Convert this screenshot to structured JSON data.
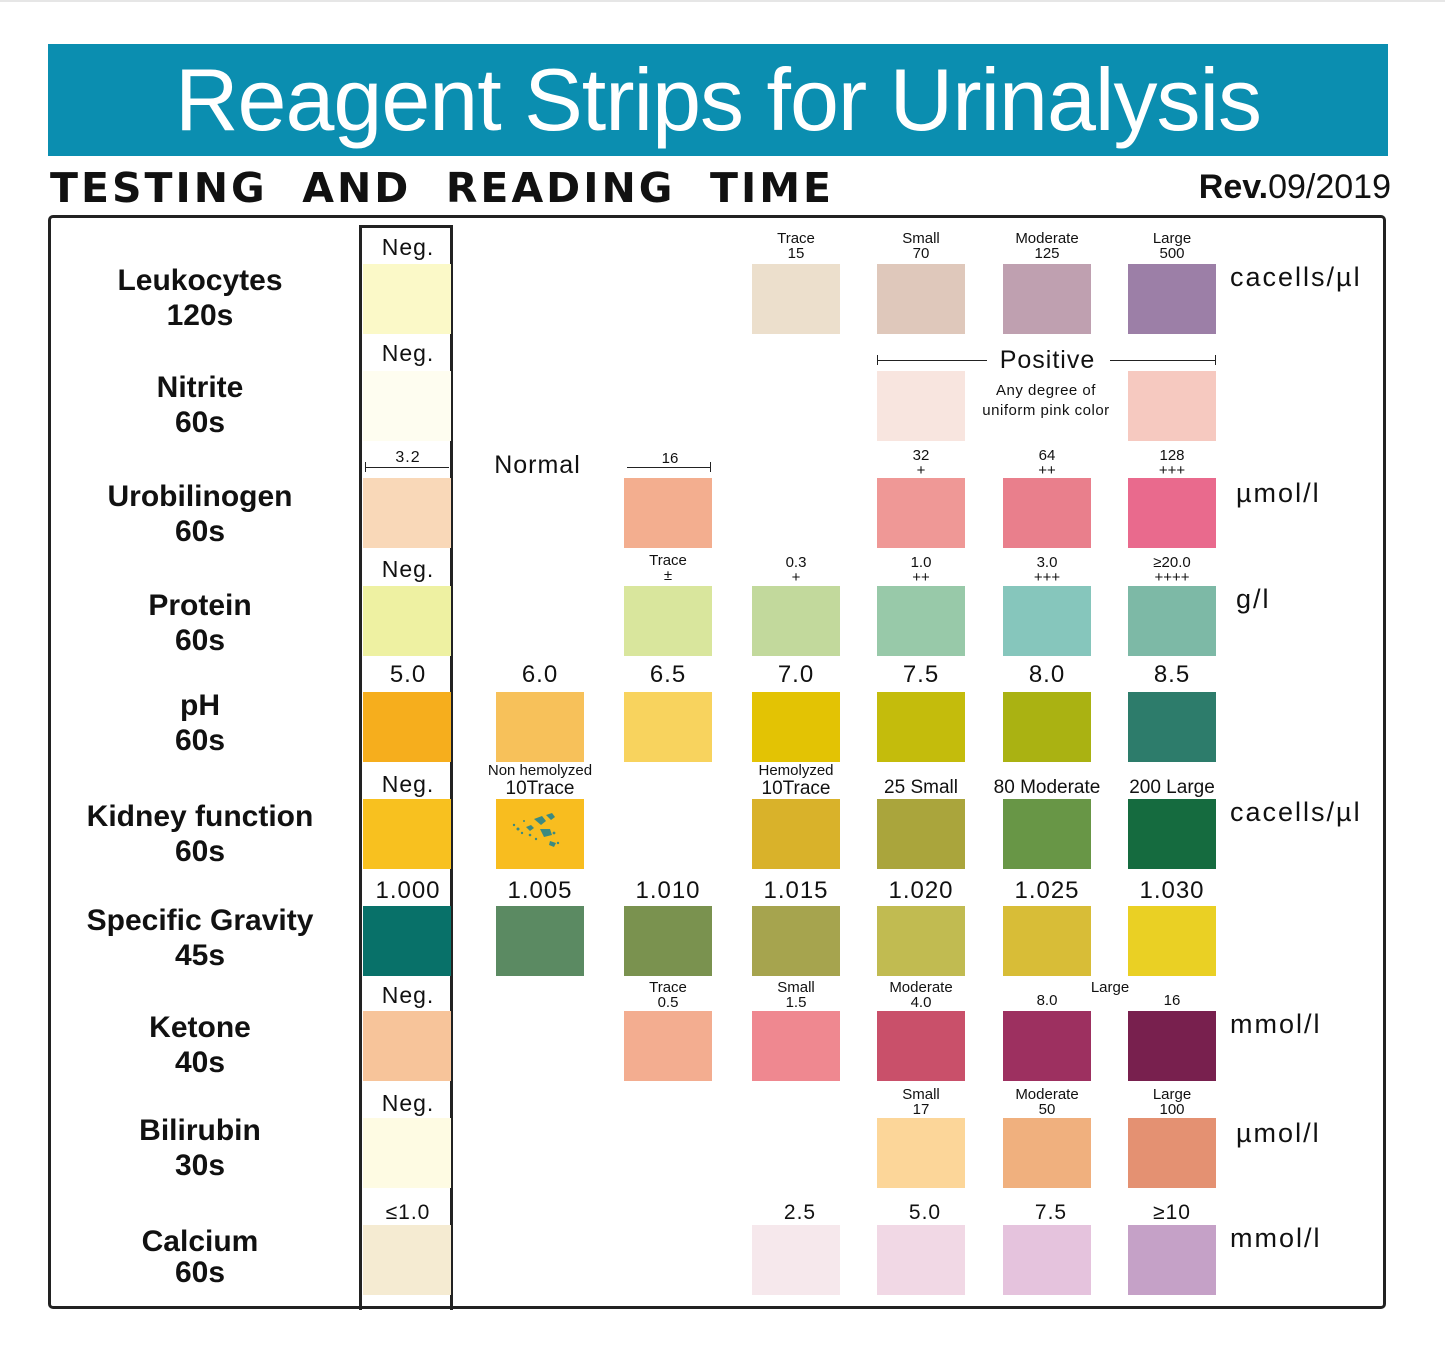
{
  "title": "Reagent Strips for Urinalysis",
  "subtitle": "TESTING  AND  READING  TIME",
  "rev": {
    "label": "Rev.",
    "date": "09/2019"
  },
  "rows": {
    "leukocytes": {
      "name": "Leukocytes",
      "time": "120s",
      "unit": "cacells/µl",
      "neg": "Neg.",
      "levels": [
        {
          "top": "Trace",
          "bottom": "15"
        },
        {
          "top": "Small",
          "bottom": "70"
        },
        {
          "top": "Moderate",
          "bottom": "125"
        },
        {
          "top": "Large",
          "bottom": "500"
        }
      ]
    },
    "nitrite": {
      "name": "Nitrite",
      "time": "60s",
      "neg": "Neg.",
      "positive": "Positive",
      "note_line1": "Any degree of",
      "note_line2": "uniform pink color"
    },
    "urobilinogen": {
      "name": "Urobilinogen",
      "time": "60s",
      "unit": "µmol/l",
      "first": "3.2",
      "normal": "Normal",
      "level16": "16",
      "levels": [
        {
          "top": "32",
          "bottom": "+"
        },
        {
          "top": "64",
          "bottom": "++"
        },
        {
          "top": "128",
          "bottom": "+++"
        }
      ]
    },
    "protein": {
      "name": "Protein",
      "time": "60s",
      "unit": "g/l",
      "neg": "Neg.",
      "levels": [
        {
          "top": "Trace",
          "bottom": "±"
        },
        {
          "top": "0.3",
          "bottom": "+"
        },
        {
          "top": "1.0",
          "bottom": "++"
        },
        {
          "top": "3.0",
          "bottom": "+++"
        },
        {
          "top": "≥20.0",
          "bottom": "++++"
        }
      ]
    },
    "ph": {
      "name": "pH",
      "time": "60s",
      "values": [
        "5.0",
        "6.0",
        "6.5",
        "7.0",
        "7.5",
        "8.0",
        "8.5"
      ]
    },
    "kidney": {
      "name": "Kidney function",
      "time": "60s",
      "unit": "cacells/µl",
      "neg": "Neg.",
      "nonhemo_top": "Non hemolyzed",
      "nonhemo_bottom": "10Trace",
      "hemo_top": "Hemolyzed",
      "hemo_bottom": "10Trace",
      "small": "25 Small",
      "moderate": "80 Moderate",
      "large": "200 Large"
    },
    "sg": {
      "name": "Specific Gravity",
      "time": "45s",
      "values": [
        "1.000",
        "1.005",
        "1.010",
        "1.015",
        "1.020",
        "1.025",
        "1.030"
      ]
    },
    "ketone": {
      "name": "Ketone",
      "time": "40s",
      "unit": "mmol/l",
      "neg": "Neg.",
      "levels": [
        {
          "top": "Trace",
          "bottom": "0.5"
        },
        {
          "top": "Small",
          "bottom": "1.5"
        },
        {
          "top": "Moderate",
          "bottom": "4.0"
        },
        {
          "top": "",
          "bottom": "8.0"
        },
        {
          "top": "",
          "bottom": "16"
        }
      ],
      "large": "Large"
    },
    "bilirubin": {
      "name": "Bilirubin",
      "time": "30s",
      "unit": "µmol/l",
      "neg": "Neg.",
      "levels": [
        {
          "top": "Small",
          "bottom": "17"
        },
        {
          "top": "Moderate",
          "bottom": "50"
        },
        {
          "top": "Large",
          "bottom": "100"
        }
      ]
    },
    "calcium": {
      "name": "Calcium",
      "time": "60s",
      "unit": "mmol/l",
      "values": [
        "≤1.0",
        "2.5",
        "5.0",
        "7.5",
        "≥10"
      ]
    }
  },
  "colors": {
    "banner": "#0b8eb0",
    "leukocytes": [
      "#fbf9c8",
      "#ecdfcc",
      "#dfc8bb",
      "#bfa0b0",
      "#9c7fa7"
    ],
    "nitrite": [
      "#fefdf0",
      "#f8e5df",
      "#f6c9c0"
    ],
    "urobilinogen": [
      "#f9d8b8",
      "#f3ae8f",
      "#ef9896",
      "#e97f8c",
      "#e96a8d"
    ],
    "protein": [
      "#eef1a2",
      "#d9e69d",
      "#c2d99c",
      "#98c9a9",
      "#86c6bc",
      "#7db9a6"
    ],
    "ph": [
      "#f6ae1d",
      "#f7c15a",
      "#f8d35e",
      "#e3c304",
      "#c4bc0c",
      "#aab212",
      "#2d7c6b"
    ],
    "kidney": [
      "#f8c11f",
      "#f8bd1f",
      "#d9b22a",
      "#aaa53c",
      "#689646",
      "#156b3f"
    ],
    "sg": [
      "#087169",
      "#5b8a62",
      "#7a924f",
      "#a6a44e",
      "#c1bb51",
      "#d8bd37",
      "#ead024"
    ],
    "ketone": [
      "#f7c49a",
      "#f3ad90",
      "#ef8890",
      "#c9506a",
      "#9d3060",
      "#78204e"
    ],
    "bilirubin": [
      "#fefbe3",
      "#fcd699",
      "#f0b07e",
      "#e49172"
    ],
    "calcium": [
      "#f5ebd2",
      "#f6e8ec",
      "#f1d8e5",
      "#e5c3dd",
      "#c5a1c7"
    ]
  }
}
